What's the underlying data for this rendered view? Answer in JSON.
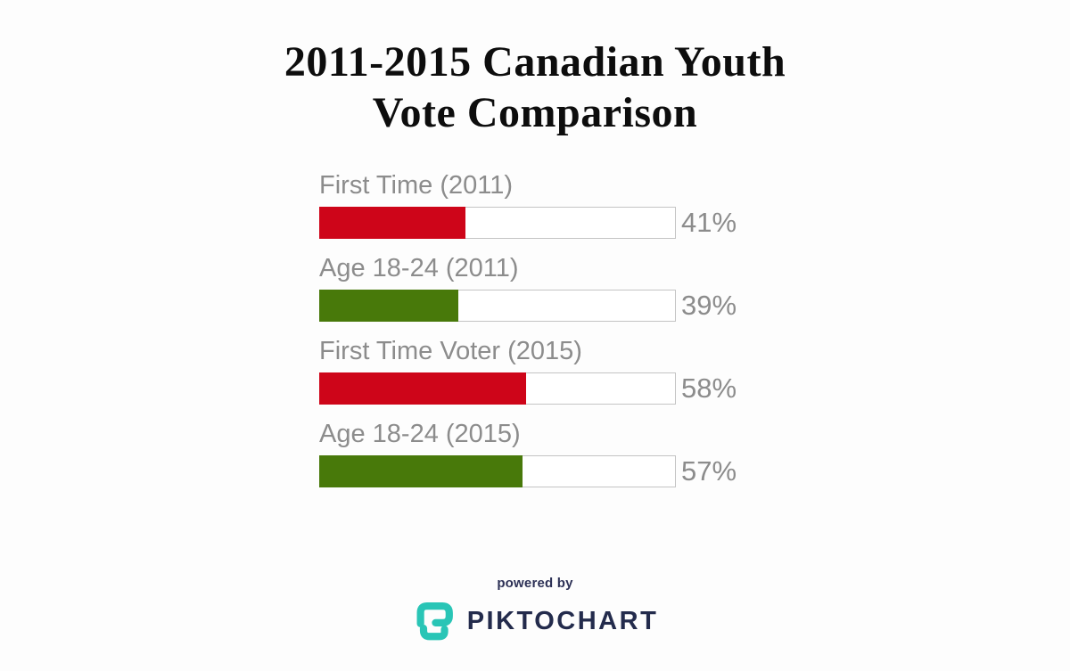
{
  "page": {
    "background": "#fdfdfd"
  },
  "chart_data": {
    "type": "bar",
    "orientation": "horizontal",
    "title": "2011-2015 Canadian Youth Vote Comparison",
    "title_lines": [
      "2011-2015 Canadian Youth",
      "Vote Comparison"
    ],
    "categories": [
      "First Time (2011)",
      "Age 18-24 (2011)",
      "First Time Voter (2015)",
      "Age 18-24 (2015)"
    ],
    "values": [
      41,
      39,
      58,
      57
    ],
    "xlim": [
      0,
      100
    ],
    "grid": false,
    "legend": false,
    "track_color": "#ffffff",
    "track_border_color": "#c4c4c4",
    "label_color": "#8c8c8c",
    "bars": [
      {
        "label": "First Time (2011)",
        "value": 41,
        "display": "41%",
        "color": "#ce0519"
      },
      {
        "label": "Age 18-24 (2011)",
        "value": 39,
        "display": "39%",
        "color": "#48790a"
      },
      {
        "label": "First Time Voter (2015)",
        "value": 58,
        "display": "58%",
        "color": "#ce0519"
      },
      {
        "label": "Age 18-24 (2015)",
        "value": 57,
        "display": "57%",
        "color": "#48790a"
      }
    ]
  },
  "footer": {
    "powered_by_label": "powered by",
    "brand_name": "PIKTOCHART",
    "logo_teal": "#29c5b6",
    "brand_navy": "#232b4c"
  }
}
